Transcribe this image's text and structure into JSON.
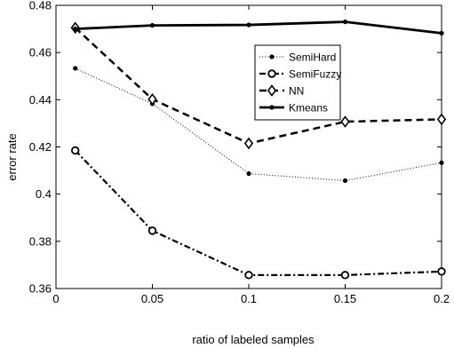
{
  "chart_data": {
    "type": "line",
    "title": "",
    "xlabel": "ratio of labeled samples",
    "ylabel": "error rate",
    "xlim": [
      0,
      0.2
    ],
    "ylim": [
      0.36,
      0.48
    ],
    "xticks": [
      "0",
      "0.05",
      "0.1",
      "0.15",
      "0.2"
    ],
    "yticks": [
      "0.36",
      "0.38",
      "0.4",
      "0.42",
      "0.44",
      "0.46",
      "0.48"
    ],
    "grid": false,
    "legend_position": "top-right",
    "x": [
      0.01,
      0.05,
      0.1,
      0.15,
      0.2
    ],
    "series": [
      {
        "name": "SemiHard",
        "values": [
          0.4533,
          0.4383,
          0.4087,
          0.4057,
          0.4133
        ],
        "line_style": "dotted",
        "marker": "dot",
        "color": "#000000"
      },
      {
        "name": "SemiFuzzy",
        "values": [
          0.4185,
          0.3845,
          0.3657,
          0.3657,
          0.3672
        ],
        "line_style": "dash-dot",
        "marker": "open-circle",
        "color": "#000000"
      },
      {
        "name": "NN",
        "values": [
          0.4705,
          0.4402,
          0.4215,
          0.4307,
          0.4317
        ],
        "line_style": "dashed",
        "marker": "diamond",
        "color": "#000000"
      },
      {
        "name": "Kmeans",
        "values": [
          0.47,
          0.4715,
          0.4717,
          0.473,
          0.4682
        ],
        "line_style": "solid",
        "marker": "dot",
        "color": "#000000"
      }
    ]
  }
}
